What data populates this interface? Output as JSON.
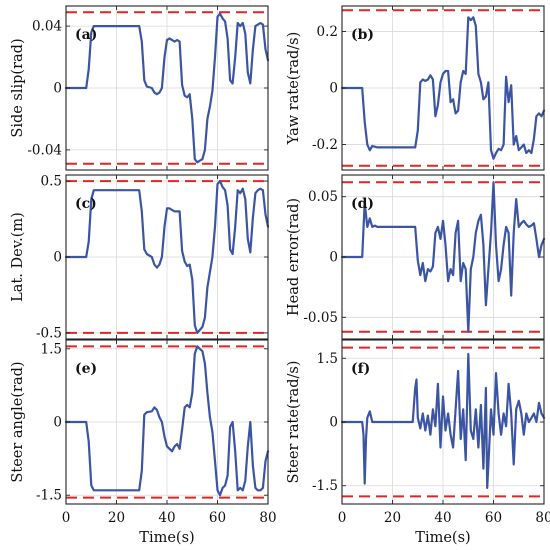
{
  "colors": {
    "series": "#3b55a3",
    "bound": "#e02525",
    "grid": "#d9d9d9",
    "axes": "#222222"
  },
  "chart_data": [
    {
      "type": "line",
      "panel_label": "(a)",
      "ylabel": "Side slip(rad)",
      "xlim": [
        0,
        80
      ],
      "ylim": [
        -0.053,
        0.053
      ],
      "xticks": [
        "0",
        "20",
        "40",
        "60",
        "80"
      ],
      "show_xticks": false,
      "yticks": [
        {
          "value": 0.04,
          "label": "0.04"
        },
        {
          "value": 0,
          "label": "0"
        },
        {
          "value": -0.04,
          "label": "-0.04"
        }
      ],
      "grid": true,
      "bounds": [
        0.049,
        -0.049
      ],
      "x": [
        0,
        8,
        9,
        10,
        11,
        20,
        29,
        30,
        31,
        32,
        34,
        35,
        36,
        37,
        38,
        39,
        40,
        41,
        42,
        43,
        44,
        45,
        46,
        47,
        48,
        49,
        50,
        51,
        52,
        53,
        54,
        55,
        56,
        57,
        58,
        59,
        60,
        61,
        62,
        63,
        64,
        65,
        66,
        67,
        68,
        69,
        70,
        71,
        72,
        73,
        74,
        75,
        76,
        77,
        78,
        79,
        80
      ],
      "y": [
        0,
        0,
        0.012,
        0.036,
        0.04,
        0.04,
        0.04,
        0.03,
        0.005,
        0.001,
        0,
        -0.003,
        -0.004,
        -0.003,
        0,
        0.02,
        0.031,
        0.032,
        0.031,
        0.03,
        0.031,
        0.03,
        0.002,
        -0.005,
        -0.006,
        -0.004,
        -0.02,
        -0.046,
        -0.048,
        -0.047,
        -0.046,
        -0.04,
        -0.02,
        -0.012,
        -0.002,
        0.02,
        0.046,
        0.048,
        0.045,
        0.043,
        0.032,
        0.005,
        0.003,
        0.02,
        0.042,
        0.04,
        0.042,
        0.035,
        0.01,
        0.003,
        0.025,
        0.04,
        0.041,
        0.042,
        0.041,
        0.025,
        0.018
      ]
    },
    {
      "type": "line",
      "panel_label": "(b)",
      "ylabel": "Yaw rate(rad/s)",
      "xlim": [
        0,
        80
      ],
      "ylim": [
        -0.29,
        0.29
      ],
      "xticks": [
        "0",
        "20",
        "40",
        "60",
        "80"
      ],
      "show_xticks": false,
      "yticks": [
        {
          "value": 0.2,
          "label": "0.2"
        },
        {
          "value": 0,
          "label": "0"
        },
        {
          "value": -0.2,
          "label": "-0.2"
        }
      ],
      "grid": true,
      "bounds": [
        0.275,
        -0.275
      ],
      "x": [
        0,
        8,
        9,
        10,
        11,
        12,
        14,
        20,
        29,
        30,
        31,
        32,
        33,
        34,
        35,
        36,
        37,
        38,
        39,
        40,
        41,
        42,
        43,
        44,
        45,
        46,
        47,
        48,
        49,
        50,
        51,
        52,
        53,
        54,
        55,
        56,
        57,
        58,
        59,
        60,
        61,
        62,
        63,
        64,
        65,
        66,
        67,
        68,
        69,
        70,
        71,
        72,
        73,
        74,
        75,
        76,
        77,
        78,
        79,
        80
      ],
      "y": [
        0,
        0,
        -0.12,
        -0.2,
        -0.22,
        -0.205,
        -0.21,
        -0.21,
        -0.21,
        -0.15,
        0.02,
        0.03,
        0.025,
        0.03,
        0.045,
        0.03,
        -0.1,
        -0.06,
        0.02,
        0.05,
        0.06,
        0.06,
        -0.05,
        -0.04,
        -0.09,
        -0.08,
        0.02,
        0.06,
        0.05,
        0.25,
        0.24,
        0.25,
        0.22,
        0.05,
        0.02,
        -0.04,
        -0.03,
        0.02,
        -0.22,
        -0.25,
        -0.23,
        -0.215,
        -0.22,
        -0.2,
        0.04,
        -0.05,
        0.01,
        -0.2,
        -0.17,
        -0.22,
        -0.21,
        -0.2,
        -0.23,
        -0.22,
        -0.23,
        -0.18,
        -0.1,
        -0.09,
        -0.1,
        -0.08
      ]
    },
    {
      "type": "line",
      "panel_label": "(c)",
      "ylabel": "Lat. Dev.(m)",
      "xlim": [
        0,
        80
      ],
      "ylim": [
        -0.54,
        0.54
      ],
      "xticks": [
        "0",
        "20",
        "40",
        "60",
        "80"
      ],
      "show_xticks": false,
      "yticks": [
        {
          "value": 0.5,
          "label": "0.5"
        },
        {
          "value": 0,
          "label": "0"
        },
        {
          "value": -0.5,
          "label": "-0.5"
        }
      ],
      "grid": true,
      "bounds": [
        0.5,
        -0.5
      ],
      "x": [
        0,
        8,
        9,
        10,
        11,
        20,
        29,
        30,
        31,
        32,
        34,
        35,
        36,
        37,
        38,
        39,
        40,
        41,
        42,
        43,
        44,
        45,
        46,
        47,
        48,
        49,
        50,
        51,
        52,
        53,
        54,
        55,
        56,
        57,
        58,
        59,
        60,
        61,
        62,
        63,
        64,
        65,
        66,
        67,
        68,
        69,
        70,
        71,
        72,
        73,
        74,
        75,
        76,
        77,
        78,
        79,
        80
      ],
      "y": [
        0,
        0,
        0.1,
        0.38,
        0.44,
        0.44,
        0.44,
        0.3,
        0.05,
        0.02,
        0.0,
        -0.05,
        -0.07,
        -0.05,
        0.0,
        0.2,
        0.32,
        0.32,
        0.31,
        0.3,
        0.3,
        0.3,
        0.04,
        -0.03,
        -0.06,
        -0.05,
        -0.15,
        -0.45,
        -0.5,
        -0.48,
        -0.46,
        -0.4,
        -0.2,
        -0.1,
        0.0,
        0.2,
        0.48,
        0.5,
        0.46,
        0.44,
        0.34,
        0.05,
        0.02,
        0.2,
        0.44,
        0.42,
        0.45,
        0.38,
        0.12,
        0.03,
        0.26,
        0.42,
        0.44,
        0.45,
        0.44,
        0.28,
        0.2
      ]
    },
    {
      "type": "line",
      "panel_label": "(d)",
      "ylabel": "Head error(rad)",
      "xlim": [
        0,
        80
      ],
      "ylim": [
        -0.068,
        0.068
      ],
      "xticks": [
        "0",
        "20",
        "40",
        "60",
        "80"
      ],
      "show_xticks": false,
      "yticks": [
        {
          "value": 0.05,
          "label": "0.05"
        },
        {
          "value": 0,
          "label": "0"
        },
        {
          "value": -0.05,
          "label": "-0.05"
        }
      ],
      "grid": true,
      "bounds": [
        0.062,
        -0.062
      ],
      "x": [
        0,
        8,
        9,
        10,
        11,
        12,
        13,
        14,
        20,
        29,
        30,
        31,
        32,
        33,
        34,
        35,
        36,
        37,
        38,
        39,
        40,
        41,
        42,
        43,
        44,
        45,
        46,
        47,
        48,
        49,
        50,
        51,
        52,
        53,
        54,
        55,
        56,
        57,
        58,
        59,
        60,
        61,
        62,
        63,
        64,
        65,
        66,
        67,
        68,
        69,
        70,
        71,
        72,
        73,
        74,
        75,
        76,
        77,
        78,
        79,
        80
      ],
      "y": [
        0,
        0,
        0.045,
        0.025,
        0.032,
        0.025,
        0.026,
        0.025,
        0.025,
        0.025,
        -0.003,
        -0.015,
        -0.005,
        -0.02,
        -0.01,
        -0.012,
        -0.008,
        0.02,
        0.025,
        0.015,
        0.03,
        0.01,
        -0.02,
        -0.01,
        -0.015,
        0.02,
        0.03,
        -0.02,
        -0.005,
        -0.01,
        -0.062,
        -0.01,
        0.0,
        0.02,
        0.03,
        0.035,
        0.01,
        -0.04,
        -0.01,
        0.02,
        0.062,
        0.01,
        -0.02,
        -0.01,
        0.01,
        0.025,
        0.02,
        -0.032,
        0.02,
        0.048,
        0.025,
        0.028,
        0.03,
        0.027,
        0.025,
        0.026,
        0.028,
        0.015,
        0.0,
        0.01,
        0.015
      ]
    },
    {
      "type": "line",
      "panel_label": "(e)",
      "ylabel": "Steer angle(rad)",
      "xlim": [
        0,
        80
      ],
      "ylim": [
        -1.68,
        1.68
      ],
      "xticks": [
        "0",
        "20",
        "40",
        "60",
        "80"
      ],
      "show_xticks": true,
      "xlabel": "Time(s)",
      "yticks": [
        {
          "value": 1.5,
          "label": "1.5"
        },
        {
          "value": 0,
          "label": "0"
        },
        {
          "value": -1.5,
          "label": "-1.5"
        }
      ],
      "grid": true,
      "bounds": [
        1.55,
        -1.55
      ],
      "x": [
        0,
        8,
        9,
        10,
        11,
        20,
        29,
        30,
        31,
        32,
        34,
        35,
        36,
        37,
        38,
        39,
        40,
        41,
        42,
        43,
        44,
        45,
        46,
        47,
        48,
        49,
        50,
        51,
        52,
        53,
        54,
        55,
        56,
        57,
        58,
        59,
        60,
        61,
        62,
        63,
        64,
        65,
        66,
        67,
        68,
        69,
        70,
        71,
        72,
        73,
        74,
        75,
        76,
        77,
        78,
        79,
        80
      ],
      "y": [
        0,
        0,
        -0.4,
        -1.3,
        -1.4,
        -1.4,
        -1.4,
        -1.0,
        0.15,
        0.2,
        0.22,
        0.3,
        0.25,
        0.1,
        0.0,
        -0.3,
        -0.5,
        -0.55,
        -0.6,
        -0.5,
        -0.45,
        -0.55,
        -0.15,
        0.3,
        0.35,
        0.3,
        0.6,
        1.4,
        1.55,
        1.5,
        1.45,
        1.2,
        0.6,
        0.1,
        -0.2,
        -0.8,
        -1.4,
        -1.5,
        -1.35,
        -1.3,
        -1.1,
        -0.1,
        0.0,
        -0.6,
        -1.4,
        -1.35,
        -1.4,
        -1.2,
        -0.5,
        0.0,
        -0.9,
        -1.35,
        -1.4,
        -1.4,
        -1.35,
        -0.8,
        -0.6
      ]
    },
    {
      "type": "line",
      "panel_label": "(f)",
      "ylabel": "Steer rate(rad/s)",
      "xlim": [
        0,
        80
      ],
      "ylim": [
        -1.93,
        1.93
      ],
      "xticks": [
        "0",
        "20",
        "40",
        "60",
        "80"
      ],
      "show_xticks": true,
      "xlabel": "Time(s)",
      "yticks": [
        {
          "value": 1.5,
          "label": "1.5"
        },
        {
          "value": 0,
          "label": "0"
        },
        {
          "value": -1.5,
          "label": "-1.5"
        }
      ],
      "grid": true,
      "bounds": [
        1.75,
        -1.75
      ],
      "x": [
        0,
        8,
        8.5,
        9,
        9.5,
        10,
        11,
        12,
        20,
        28,
        29,
        29.5,
        30,
        31,
        32,
        33,
        34,
        35,
        36,
        37,
        38,
        39,
        40,
        41,
        42,
        43,
        44,
        45,
        46,
        47,
        48,
        49,
        50,
        51,
        52,
        53,
        54,
        55,
        56,
        57,
        57.5,
        58,
        59,
        60,
        61,
        62,
        63,
        64,
        65,
        66,
        67,
        68,
        69,
        70,
        71,
        72,
        73,
        74,
        75,
        76,
        77,
        78,
        79,
        80
      ],
      "y": [
        0,
        0,
        -0.3,
        -1.45,
        -0.4,
        0.1,
        0.25,
        0.0,
        0.0,
        0.0,
        0.8,
        1.0,
        0.1,
        -0.15,
        0.2,
        -0.2,
        0.15,
        -0.3,
        0.3,
        -0.1,
        0.9,
        -0.6,
        0.6,
        -0.2,
        0.2,
        -0.3,
        -0.6,
        0.3,
        1.2,
        -0.4,
        0.3,
        -0.9,
        1.6,
        -0.2,
        -0.4,
        0.3,
        -0.6,
        0.4,
        -1.1,
        0.8,
        -1.55,
        -1.0,
        0.3,
        -0.3,
        1.15,
        0.2,
        -0.3,
        0.2,
        -0.1,
        0.9,
        0.2,
        -1.0,
        0.3,
        0.5,
        0.2,
        -0.3,
        0.2,
        0.0,
        0.1,
        0.2,
        0.0,
        0.45,
        0.2,
        0.1
      ]
    }
  ]
}
